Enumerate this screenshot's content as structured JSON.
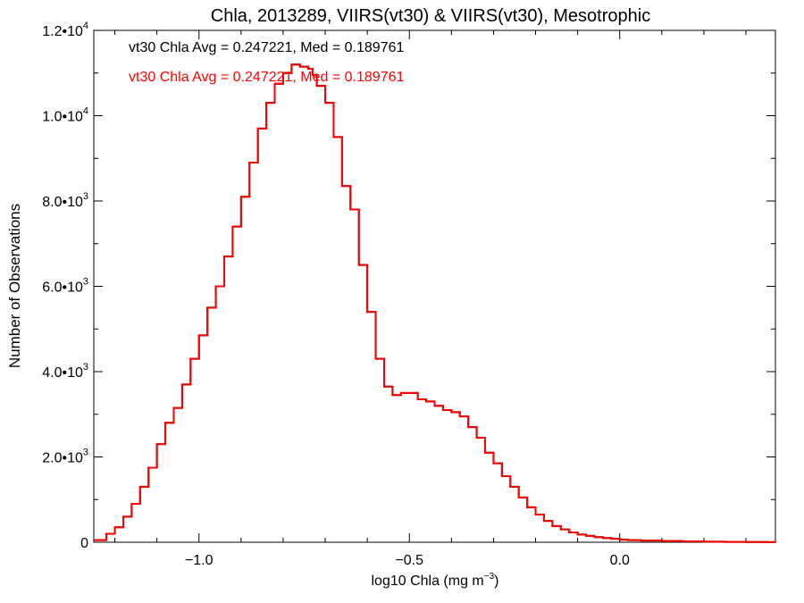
{
  "chart_data": {
    "type": "line",
    "title": "Chla, 2013289, VIIRS(vt30) & VIIRS(vt30), Mesotrophic",
    "xlabel_main": "log10 Chla (mg m",
    "xlabel_sup": "−3",
    "xlabel_end": ")",
    "ylabel": "Number of Observations",
    "xlim": [
      -1.25,
      0.37
    ],
    "ylim": [
      0,
      12000
    ],
    "x_ticks": [
      {
        "value": -1.0,
        "label": "−1.0"
      },
      {
        "value": -0.5,
        "label": "−0.5"
      },
      {
        "value": 0.0,
        "label": "0.0"
      }
    ],
    "y_ticks": [
      {
        "value": 0,
        "mant": "0",
        "exp": ""
      },
      {
        "value": 2000,
        "mant": "2.0•10",
        "exp": "3"
      },
      {
        "value": 4000,
        "mant": "4.0•10",
        "exp": "3"
      },
      {
        "value": 6000,
        "mant": "6.0•10",
        "exp": "3"
      },
      {
        "value": 8000,
        "mant": "8.0•10",
        "exp": "3"
      },
      {
        "value": 10000,
        "mant": "1.0•10",
        "exp": "4"
      },
      {
        "value": 12000,
        "mant": "1.2•10",
        "exp": "4"
      }
    ],
    "annotations": [
      {
        "text": "vt30 Chla Avg = 0.247221, Med = 0.189761",
        "color": "#000000"
      },
      {
        "text": "vt30 Chla Avg = 0.247221, Med = 0.189761",
        "color": "#ff0000"
      }
    ],
    "series": [
      {
        "color": "#000000",
        "x": [
          -1.25,
          -1.22,
          -1.2,
          -1.18,
          -1.16,
          -1.14,
          -1.12,
          -1.1,
          -1.08,
          -1.06,
          -1.04,
          -1.02,
          -1.0,
          -0.98,
          -0.96,
          -0.94,
          -0.92,
          -0.9,
          -0.88,
          -0.86,
          -0.84,
          -0.82,
          -0.8,
          -0.78,
          -0.76,
          -0.74,
          -0.73,
          -0.72,
          -0.7,
          -0.68,
          -0.66,
          -0.64,
          -0.62,
          -0.6,
          -0.58,
          -0.56,
          -0.54,
          -0.52,
          -0.5,
          -0.48,
          -0.46,
          -0.44,
          -0.42,
          -0.4,
          -0.38,
          -0.36,
          -0.34,
          -0.32,
          -0.3,
          -0.28,
          -0.26,
          -0.24,
          -0.22,
          -0.2,
          -0.18,
          -0.16,
          -0.14,
          -0.12,
          -0.1,
          -0.08,
          -0.06,
          -0.04,
          -0.02,
          0.0,
          0.02,
          0.05,
          0.1,
          0.15,
          0.2,
          0.25,
          0.3,
          0.35,
          0.37
        ],
        "y": [
          50,
          200,
          350,
          600,
          900,
          1300,
          1750,
          2300,
          2800,
          3150,
          3700,
          4300,
          4850,
          5500,
          6000,
          6700,
          7400,
          8100,
          8900,
          9700,
          10300,
          10750,
          11000,
          11200,
          11150,
          11100,
          10950,
          10700,
          10300,
          9500,
          8350,
          7800,
          6500,
          5400,
          4300,
          3650,
          3450,
          3500,
          3500,
          3350,
          3300,
          3200,
          3100,
          3050,
          2950,
          2700,
          2450,
          2100,
          1850,
          1550,
          1300,
          1050,
          820,
          650,
          500,
          380,
          300,
          230,
          180,
          150,
          120,
          100,
          80,
          60,
          50,
          40,
          30,
          20,
          12,
          8,
          5,
          2,
          0
        ]
      },
      {
        "color": "#ff0000",
        "x": [
          -1.25,
          -1.22,
          -1.2,
          -1.18,
          -1.16,
          -1.14,
          -1.12,
          -1.1,
          -1.08,
          -1.06,
          -1.04,
          -1.02,
          -1.0,
          -0.98,
          -0.96,
          -0.94,
          -0.92,
          -0.9,
          -0.88,
          -0.86,
          -0.84,
          -0.82,
          -0.8,
          -0.78,
          -0.76,
          -0.74,
          -0.73,
          -0.72,
          -0.7,
          -0.68,
          -0.66,
          -0.64,
          -0.62,
          -0.6,
          -0.58,
          -0.56,
          -0.54,
          -0.52,
          -0.5,
          -0.48,
          -0.46,
          -0.44,
          -0.42,
          -0.4,
          -0.38,
          -0.36,
          -0.34,
          -0.32,
          -0.3,
          -0.28,
          -0.26,
          -0.24,
          -0.22,
          -0.2,
          -0.18,
          -0.16,
          -0.14,
          -0.12,
          -0.1,
          -0.08,
          -0.06,
          -0.04,
          -0.02,
          0.0,
          0.02,
          0.05,
          0.1,
          0.15,
          0.2,
          0.25,
          0.3,
          0.35,
          0.37
        ],
        "y": [
          50,
          200,
          350,
          600,
          900,
          1300,
          1750,
          2300,
          2800,
          3150,
          3700,
          4300,
          4850,
          5500,
          6000,
          6700,
          7400,
          8100,
          8900,
          9700,
          10300,
          10750,
          11000,
          11200,
          11150,
          11100,
          10950,
          10700,
          10300,
          9500,
          8350,
          7800,
          6500,
          5400,
          4300,
          3650,
          3450,
          3500,
          3500,
          3350,
          3300,
          3200,
          3100,
          3050,
          2950,
          2700,
          2450,
          2100,
          1850,
          1550,
          1300,
          1050,
          820,
          650,
          500,
          380,
          300,
          230,
          180,
          150,
          120,
          100,
          80,
          60,
          50,
          40,
          30,
          20,
          12,
          8,
          5,
          2,
          0
        ]
      }
    ]
  }
}
